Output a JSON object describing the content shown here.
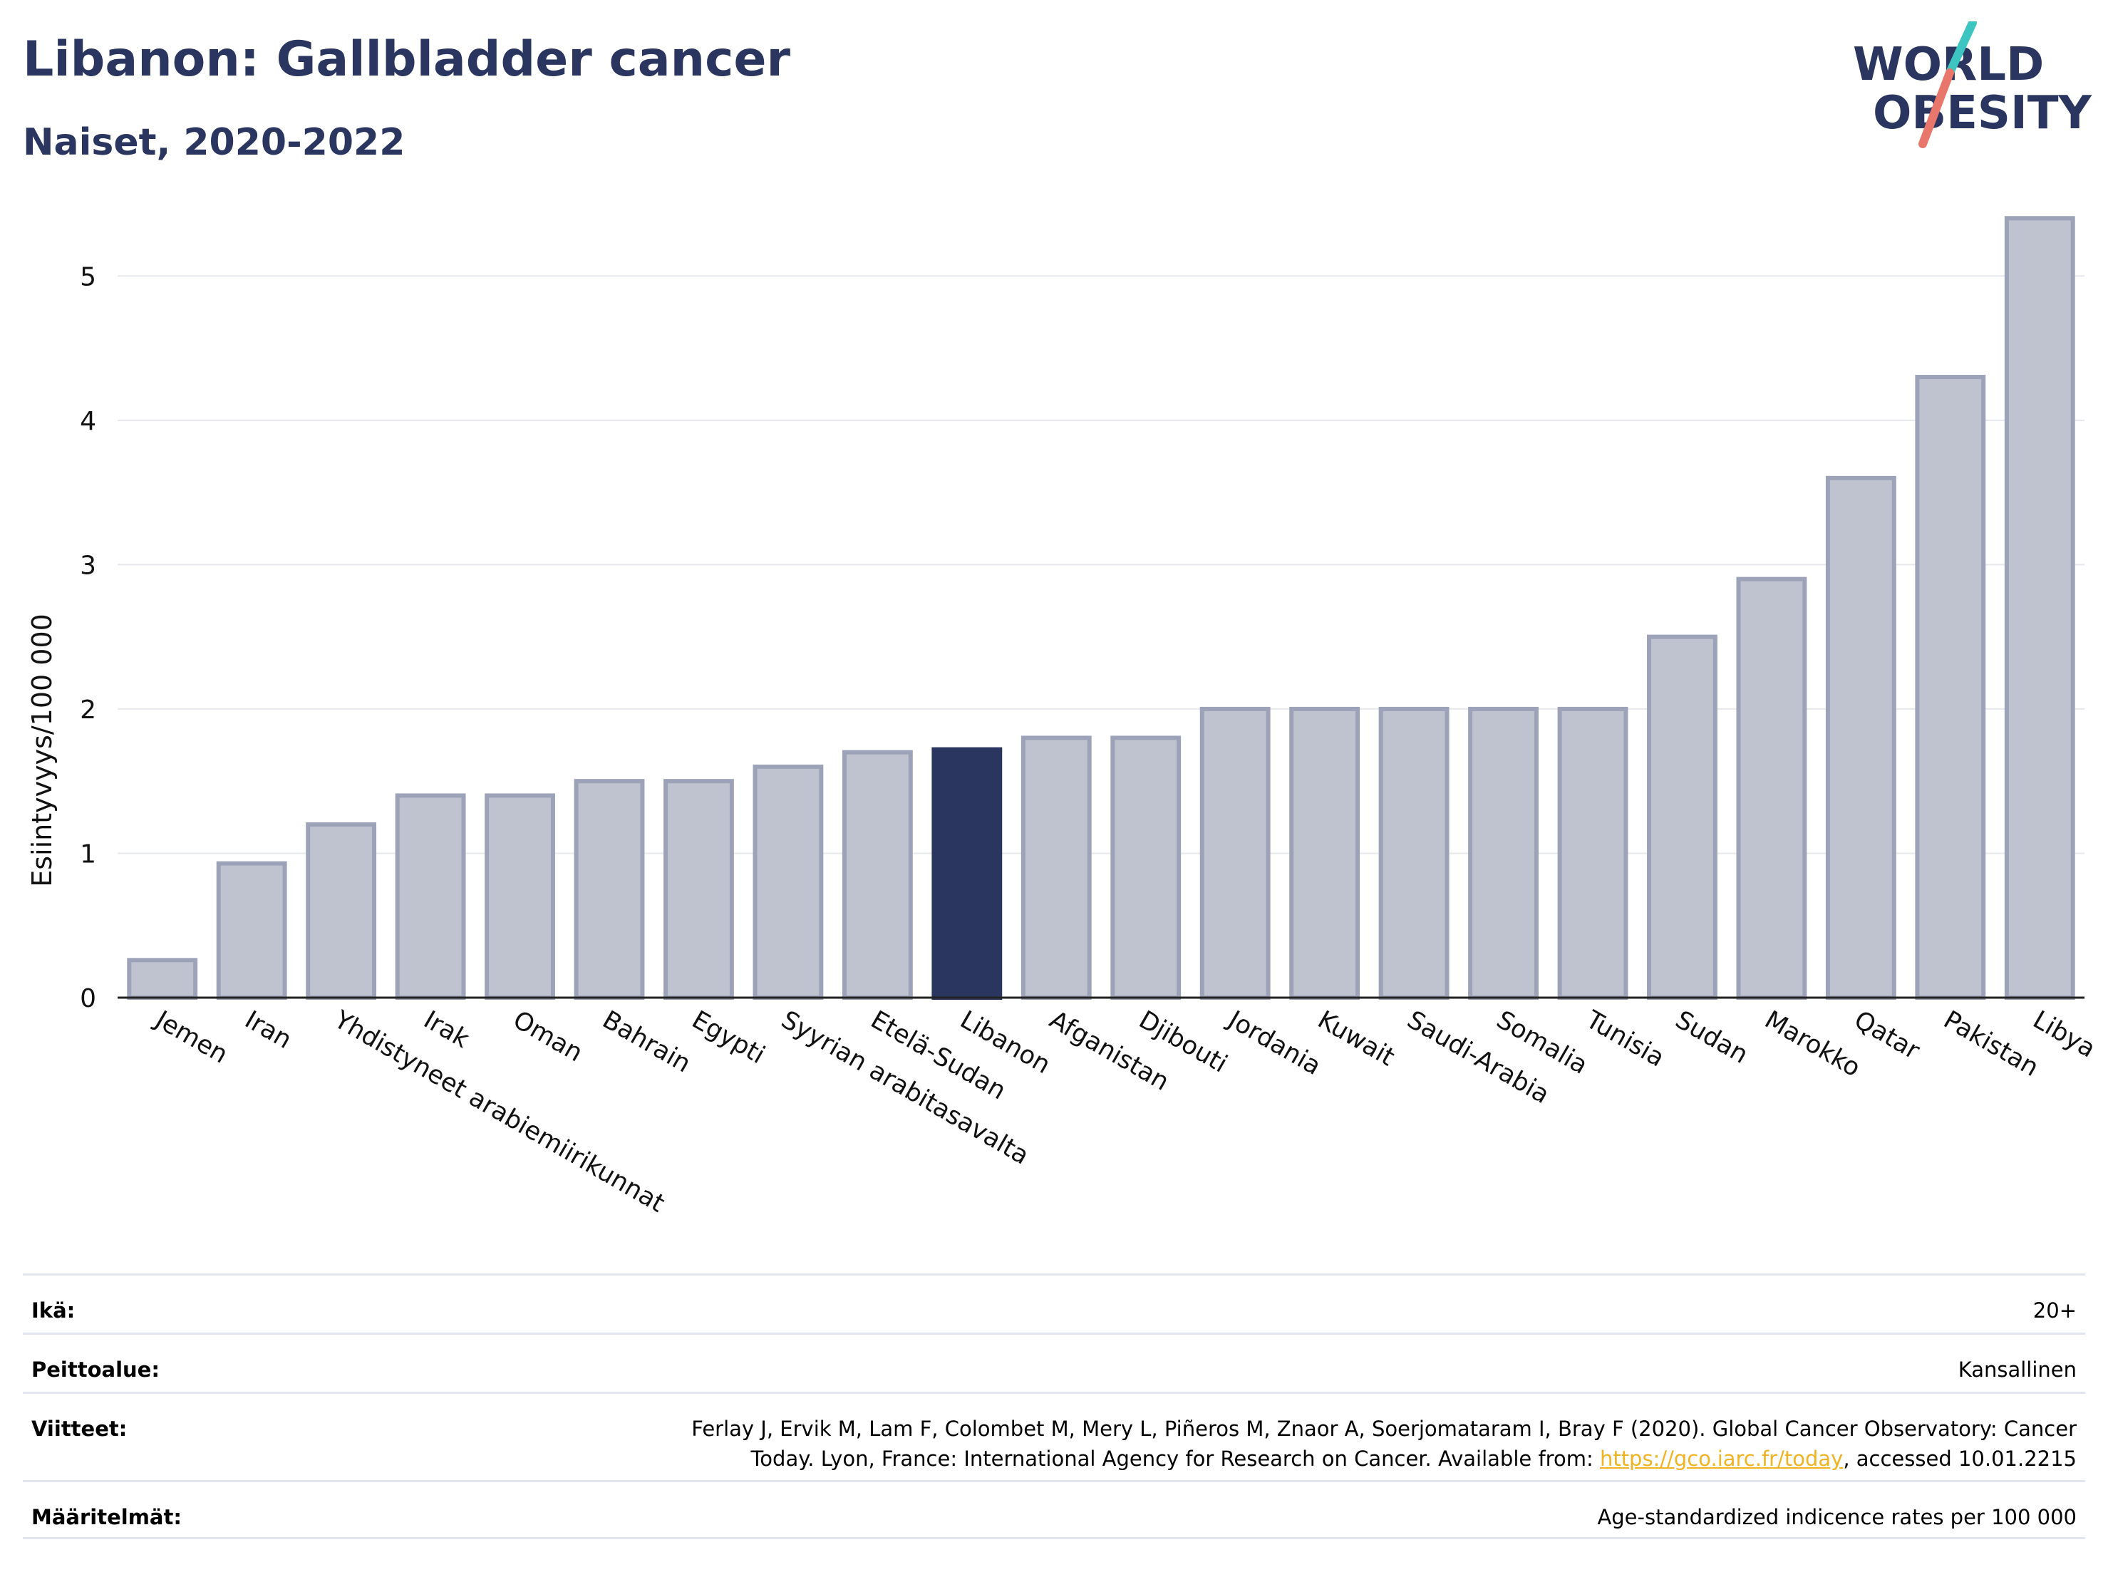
{
  "header": {
    "title": "Libanon: Gallbladder cancer",
    "subtitle": "Naiset, 2020-2022"
  },
  "logo": {
    "line1": "WORLD",
    "line2": "OBESITY"
  },
  "colors": {
    "title": "#2a3560",
    "bar": "#bfc3d0",
    "bar_stroke": "#9ca2b8",
    "highlight": "#2a3560",
    "grid": "#e6e8ee",
    "link": "#f0b323",
    "logo_teal": "#3cc5c1",
    "logo_red": "#e8766b"
  },
  "chart_data": {
    "type": "bar",
    "ylabel": "Esiintyvyys/100 000",
    "ylim": [
      0,
      5.5
    ],
    "yticks": [
      0,
      1,
      2,
      3,
      4,
      5
    ],
    "highlight": "Libanon",
    "categories": [
      "Jemen",
      "Iran",
      "Yhdistyneet arabiemiirikunnat",
      "Irak",
      "Oman",
      "Bahrain",
      "Egypti",
      "Syyrian arabitasavalta",
      "Etelä-Sudan",
      "Libanon",
      "Afganistan",
      "Djibouti",
      "Jordania",
      "Kuwait",
      "Saudi-Arabia",
      "Somalia",
      "Tunisia",
      "Sudan",
      "Marokko",
      "Qatar",
      "Pakistan",
      "Libya"
    ],
    "values": [
      0.26,
      0.93,
      1.2,
      1.4,
      1.4,
      1.5,
      1.5,
      1.6,
      1.7,
      1.72,
      1.8,
      1.8,
      2.0,
      2.0,
      2.0,
      2.0,
      2.0,
      2.5,
      2.9,
      3.6,
      4.3,
      5.4
    ]
  },
  "meta": {
    "age_label": "Ikä:",
    "age_value": "20+",
    "coverage_label": "Peittoalue:",
    "coverage_value": "Kansallinen",
    "refs_label": "Viitteet:",
    "refs_line1": "Ferlay J, Ervik M, Lam F, Colombet M, Mery L, Piñeros M, Znaor A, Soerjomataram I, Bray F (2020). Global Cancer Observatory: Cancer",
    "refs_line2_pre": "Today. Lyon, France: International Agency for Research on Cancer. Available from: ",
    "refs_link": "https://gco.iarc.fr/today",
    "refs_line2_post": ", accessed 10.01.2215",
    "defs_label": "Määritelmät:",
    "defs_value": "Age-standardized indicence rates per 100 000"
  }
}
